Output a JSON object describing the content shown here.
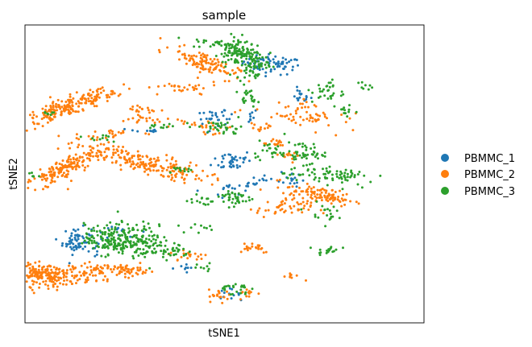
{
  "chart_data": {
    "type": "scatter",
    "title": "sample",
    "xlabel": "tSNE1",
    "ylabel": "tSNE2",
    "xlim": [
      -50,
      50
    ],
    "ylim": [
      -50,
      50
    ],
    "xticks": "none",
    "yticks": "none",
    "grid": false,
    "legend": {
      "placement": "right",
      "markers": "circle"
    },
    "series": [
      {
        "name": "PBMMC_1",
        "color": "#1f77b4",
        "clusters": [
          {
            "cx": 12,
            "cy": 36.8,
            "sx": 3.6,
            "sy": 1.6,
            "rot": -8,
            "n": 70
          },
          {
            "cx": 19,
            "cy": 26.2,
            "sx": 1.3,
            "sy": 1.2,
            "rot": 0,
            "n": 16
          },
          {
            "cx": -2,
            "cy": 18.3,
            "sx": 2.2,
            "sy": 1.8,
            "rot": 30,
            "n": 30
          },
          {
            "cx": -20,
            "cy": 14.5,
            "sx": 2.2,
            "sy": 0.5,
            "rot": 0,
            "n": 10
          },
          {
            "cx": 6,
            "cy": 19.5,
            "sx": 1.2,
            "sy": 1.2,
            "rot": 0,
            "n": 8
          },
          {
            "cx": 2,
            "cy": 4.5,
            "sx": 2.5,
            "sy": 1.8,
            "rot": 0,
            "n": 38
          },
          {
            "cx": 1,
            "cy": -5.0,
            "sx": 2.2,
            "sy": 1.2,
            "rot": 15,
            "n": 14
          },
          {
            "cx": 8,
            "cy": -3.0,
            "sx": 3.2,
            "sy": 0.8,
            "rot": 15,
            "n": 18
          },
          {
            "cx": 17,
            "cy": -1.5,
            "sx": 1.5,
            "sy": 1.8,
            "rot": 0,
            "n": 14
          },
          {
            "cx": -37,
            "cy": -22.5,
            "sx": 1.8,
            "sy": 2.2,
            "rot": 0,
            "n": 60
          },
          {
            "cx": -32,
            "cy": -24.5,
            "sx": 1.2,
            "sy": 1.2,
            "rot": 0,
            "n": 10
          },
          {
            "cx": -26,
            "cy": -19.5,
            "sx": 3.5,
            "sy": 0.9,
            "rot": 0,
            "n": 12
          },
          {
            "cx": -10,
            "cy": -31.5,
            "sx": 1.8,
            "sy": 0.9,
            "rot": 0,
            "n": 8
          },
          {
            "cx": 1,
            "cy": -40.3,
            "sx": 1.4,
            "sy": 0.8,
            "rot": 0,
            "n": 12
          }
        ]
      },
      {
        "name": "PBMMC_2",
        "color": "#ff7f0e",
        "clusters": [
          {
            "cx": -39,
            "cy": 22.5,
            "sx": 6.5,
            "sy": 1.5,
            "rot": 25,
            "n": 190
          },
          {
            "cx": -29,
            "cy": 27,
            "sx": 2.2,
            "sy": 0.5,
            "rot": 0,
            "n": 12
          },
          {
            "cx": -40,
            "cy": 1.8,
            "sx": 6.0,
            "sy": 1.5,
            "rot": 36,
            "n": 170
          },
          {
            "cx": -21,
            "cy": 4.0,
            "sx": 8.5,
            "sy": 1.8,
            "rot": -18,
            "n": 200
          },
          {
            "cx": -45,
            "cy": -34,
            "sx": 6.0,
            "sy": 1.9,
            "rot": 0,
            "n": 260
          },
          {
            "cx": -30,
            "cy": -32.5,
            "sx": 3.5,
            "sy": 1.3,
            "rot": 0,
            "n": 60
          },
          {
            "cx": -24,
            "cy": -32.5,
            "sx": 2.5,
            "sy": 1.0,
            "rot": 0,
            "n": 30
          },
          {
            "cx": 21,
            "cy": 18.5,
            "sx": 7.0,
            "sy": 1.7,
            "rot": -10,
            "n": 40
          },
          {
            "cx": -11,
            "cy": 28.5,
            "sx": 5.0,
            "sy": 1.3,
            "rot": 0,
            "n": 30
          },
          {
            "cx": -21,
            "cy": 21.7,
            "sx": 1.8,
            "sy": 0.9,
            "rot": 0,
            "n": 16
          },
          {
            "cx": -20,
            "cy": 18.0,
            "sx": 4.0,
            "sy": 1.0,
            "rot": 0,
            "n": 18
          },
          {
            "cx": -28,
            "cy": 13.5,
            "sx": 4.0,
            "sy": 1.0,
            "rot": 0,
            "n": 20
          },
          {
            "cx": -8,
            "cy": 16.5,
            "sx": 2.5,
            "sy": 0.7,
            "rot": 0,
            "n": 14
          },
          {
            "cx": -3,
            "cy": 15.0,
            "sx": 2.0,
            "sy": 0.8,
            "rot": 0,
            "n": 12
          },
          {
            "cx": 9,
            "cy": 15.5,
            "sx": 1.8,
            "sy": 0.9,
            "rot": 0,
            "n": 12
          },
          {
            "cx": -5,
            "cy": 37.5,
            "sx": 4.5,
            "sy": 1.5,
            "rot": -28,
            "n": 110
          },
          {
            "cx": 15,
            "cy": -11.5,
            "sx": 3.5,
            "sy": 1.6,
            "rot": 0,
            "n": 50
          },
          {
            "cx": 24,
            "cy": -7.0,
            "sx": 4.5,
            "sy": 1.3,
            "rot": -14,
            "n": 100
          },
          {
            "cx": 19,
            "cy": 23.0,
            "sx": 2.0,
            "sy": 1.0,
            "rot": 0,
            "n": 12
          },
          {
            "cx": 23,
            "cy": 19.0,
            "sx": 1.5,
            "sy": 0.8,
            "rot": 0,
            "n": 10
          },
          {
            "cx": 18,
            "cy": 6.0,
            "sx": 1.8,
            "sy": 0.9,
            "rot": 0,
            "n": 12
          },
          {
            "cx": 12,
            "cy": 10.5,
            "sx": 2.0,
            "sy": 0.9,
            "rot": 0,
            "n": 16
          },
          {
            "cx": 7,
            "cy": -24.5,
            "sx": 2.5,
            "sy": 1.0,
            "rot": 0,
            "n": 20
          },
          {
            "cx": -9,
            "cy": -27.5,
            "sx": 2.5,
            "sy": 1.1,
            "rot": 0,
            "n": 20
          },
          {
            "cx": -1,
            "cy": -40.8,
            "sx": 1.5,
            "sy": 1.0,
            "rot": 0,
            "n": 20
          },
          {
            "cx": 6,
            "cy": -40.0,
            "sx": 1.2,
            "sy": 1.0,
            "rot": 0,
            "n": 12
          },
          {
            "cx": 17,
            "cy": -34.5,
            "sx": 1.2,
            "sy": 0.6,
            "rot": 0,
            "n": 8
          }
        ]
      },
      {
        "name": "PBMMC_3",
        "color": "#2ca02c",
        "clusters": [
          {
            "cx": -3,
            "cy": 44.0,
            "sx": 2.5,
            "sy": 0.8,
            "rot": 0,
            "n": 20
          },
          {
            "cx": 4,
            "cy": 41.0,
            "sx": 3.0,
            "sy": 2.2,
            "rot": -20,
            "n": 120
          },
          {
            "cx": 7,
            "cy": 36.0,
            "sx": 2.0,
            "sy": 2.0,
            "rot": 0,
            "n": 50
          },
          {
            "cx": 6,
            "cy": 25.5,
            "sx": 1.2,
            "sy": 1.3,
            "rot": 0,
            "n": 20
          },
          {
            "cx": 0,
            "cy": 15.5,
            "sx": 2.2,
            "sy": 1.3,
            "rot": 0,
            "n": 30
          },
          {
            "cx": 26,
            "cy": 27.5,
            "sx": 2.0,
            "sy": 2.0,
            "rot": 0,
            "n": 30
          },
          {
            "cx": 30,
            "cy": 21.5,
            "sx": 1.5,
            "sy": 1.2,
            "rot": 0,
            "n": 12
          },
          {
            "cx": 35,
            "cy": 29.5,
            "sx": 0.8,
            "sy": 0.8,
            "rot": 0,
            "n": 8
          },
          {
            "cx": 20,
            "cy": 7.0,
            "sx": 2.5,
            "sy": 1.8,
            "rot": 0,
            "n": 40
          },
          {
            "cx": 25,
            "cy": 0.0,
            "sx": 5.0,
            "sy": 1.5,
            "rot": 0,
            "n": 55
          },
          {
            "cx": 30,
            "cy": -1.5,
            "sx": 2.0,
            "sy": 1.2,
            "rot": 0,
            "n": 20
          },
          {
            "cx": 2,
            "cy": -8.0,
            "sx": 2.5,
            "sy": 1.4,
            "rot": 0,
            "n": 40
          },
          {
            "cx": -6,
            "cy": -9.0,
            "sx": 1.5,
            "sy": 1.0,
            "rot": 0,
            "n": 14
          },
          {
            "cx": -28,
            "cy": -22.0,
            "sx": 3.5,
            "sy": 2.6,
            "rot": 0,
            "n": 180
          },
          {
            "cx": -19,
            "cy": -22.5,
            "sx": 2.5,
            "sy": 3.0,
            "rot": 0,
            "n": 80
          },
          {
            "cx": -13,
            "cy": -26.0,
            "sx": 2.0,
            "sy": 1.5,
            "rot": 0,
            "n": 30
          },
          {
            "cx": 24,
            "cy": -13.0,
            "sx": 2.0,
            "sy": 1.5,
            "rot": 0,
            "n": 20
          },
          {
            "cx": 26,
            "cy": -25.5,
            "sx": 1.5,
            "sy": 0.8,
            "rot": 0,
            "n": 18
          },
          {
            "cx": 2,
            "cy": -38.5,
            "sx": 2.0,
            "sy": 1.0,
            "rot": 0,
            "n": 25
          },
          {
            "cx": -11,
            "cy": 1.5,
            "sx": 1.8,
            "sy": 1.0,
            "rot": 0,
            "n": 12
          },
          {
            "cx": -30,
            "cy": 12.0,
            "sx": 2.5,
            "sy": 0.8,
            "rot": 0,
            "n": 10
          },
          {
            "cx": -45,
            "cy": 20.5,
            "sx": 1.5,
            "sy": 0.5,
            "rot": 0,
            "n": 8
          },
          {
            "cx": -48,
            "cy": -0.5,
            "sx": 0.6,
            "sy": 0.5,
            "rot": 0,
            "n": 6
          },
          {
            "cx": -12,
            "cy": 16.0,
            "sx": 3.5,
            "sy": 0.6,
            "rot": 0,
            "n": 14
          },
          {
            "cx": 14,
            "cy": 6.5,
            "sx": 4.5,
            "sy": 0.8,
            "rot": 0,
            "n": 20
          },
          {
            "cx": 11,
            "cy": 9.5,
            "sx": 1.5,
            "sy": 0.8,
            "rot": 0,
            "n": 10
          },
          {
            "cx": -6,
            "cy": -18.0,
            "sx": 3.0,
            "sy": 1.0,
            "rot": 0,
            "n": 10
          },
          {
            "cx": -5,
            "cy": -31.5,
            "sx": 1.5,
            "sy": 0.8,
            "rot": 0,
            "n": 8
          }
        ]
      }
    ]
  }
}
